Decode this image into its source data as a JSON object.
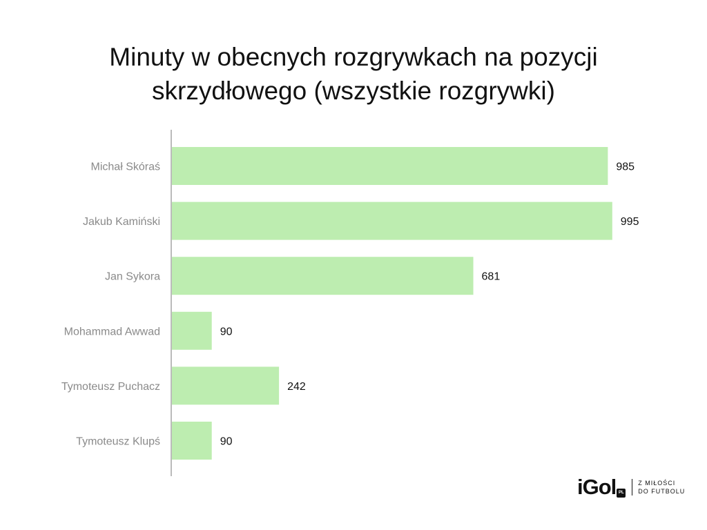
{
  "chart_data": {
    "type": "bar",
    "orientation": "horizontal",
    "title": "Minuty w obecnych rozgrywkach na pozycji skrzydłowego (wszystkie rozgrywki)",
    "title_line1": "Minuty w obecnych rozgrywkach na pozycji",
    "title_line2": "skrzydłowego (wszystkie rozgrywki)",
    "categories": [
      "Michał Skóraś",
      "Jakub Kamiński",
      "Jan Sykora",
      "Mohammad Awwad",
      "Tymoteusz Puchacz",
      "Tymoteusz Klupś"
    ],
    "values": [
      985,
      995,
      681,
      90,
      242,
      90
    ],
    "xlabel": "",
    "ylabel": "",
    "xlim": [
      0,
      1000
    ],
    "grid": false,
    "bar_color": "#bdedb0",
    "axis_color": "#bbbbbb"
  },
  "logo": {
    "word": "iGol",
    "badge": "PL",
    "tagline_line1": "Z MIŁOŚCI",
    "tagline_line2": "DO FUTBOLU"
  }
}
